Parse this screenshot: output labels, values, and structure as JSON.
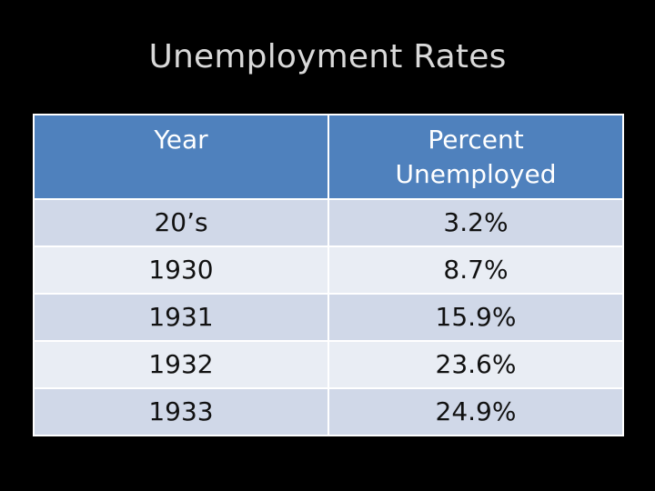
{
  "slide": {
    "title": "Unemployment Rates"
  },
  "table": {
    "headers": {
      "year": "Year",
      "percent_line1": "Percent",
      "percent_line2": "Unemployed"
    },
    "rows": [
      {
        "year": "20’s",
        "percent": "3.2%"
      },
      {
        "year": "1930",
        "percent": "8.7%"
      },
      {
        "year": "1931",
        "percent": "15.9%"
      },
      {
        "year": "1932",
        "percent": "23.6%"
      },
      {
        "year": "1933",
        "percent": "24.9%"
      }
    ]
  },
  "colors": {
    "background": "#000000",
    "header_fill": "#4f81bd",
    "row_band_dark": "#d0d8e8",
    "row_band_light": "#e9edf4",
    "title_text": "#d9d9d9"
  }
}
